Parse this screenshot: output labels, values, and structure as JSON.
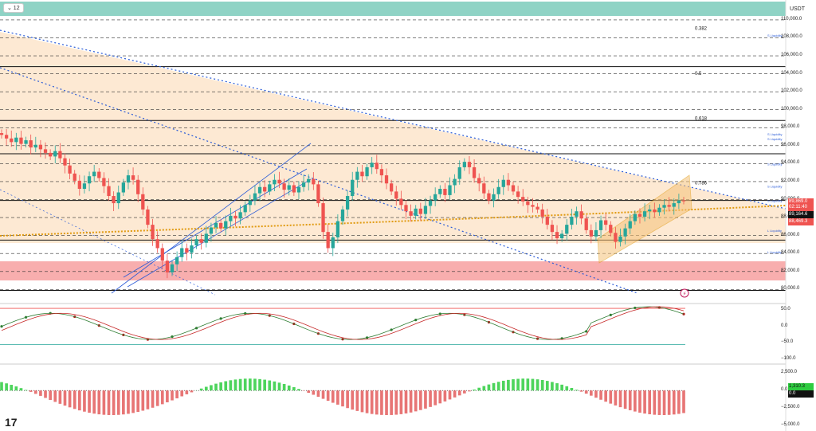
{
  "toolbar": {
    "collapse_label": "⌄ 12"
  },
  "price_axis": {
    "currency": "USDT",
    "ticks": [
      "110,000.0",
      "108,000.0",
      "106,000.0",
      "104,000.0",
      "102,000.0",
      "100,000.0",
      "98,000.0",
      "96,000.0",
      "94,000.0",
      "92,000.0",
      "90,000.0",
      "88,000.0",
      "86,000.0",
      "84,000.0",
      "82,000.0",
      "80,000.0"
    ],
    "tick_values": [
      110000,
      108000,
      106000,
      104000,
      102000,
      100000,
      98000,
      96000,
      94000,
      92000,
      90000,
      88000,
      86000,
      84000,
      82000,
      80000
    ],
    "current_price": "89,869.0",
    "countdown": "02:11:40",
    "level_1": "89,164.6",
    "level_2": "88,469.3"
  },
  "fib_levels": [
    {
      "label": "0.382",
      "value": 108700
    },
    {
      "label": "0.5",
      "value": 103700
    },
    {
      "label": "0.618",
      "value": 98700
    },
    {
      "label": "0.786",
      "value": 91500
    }
  ],
  "liquidity_labels": [
    {
      "label": "S Liquidity",
      "value": 108300
    },
    {
      "label": "S Liquidity",
      "value": 97300
    },
    {
      "label": "S Liquidity",
      "value": 96800
    },
    {
      "label": "S Liquidity",
      "value": 94000
    },
    {
      "label": "S Liquidity",
      "value": 91500
    },
    {
      "label": "S Liquidity",
      "value": 89900
    },
    {
      "label": "L Liquidity",
      "value": 86600
    },
    {
      "label": "L Liquidity",
      "value": 84200
    }
  ],
  "oscillator_axis": {
    "ticks": [
      "50.0",
      "0.0",
      "−50.0",
      "−100.0"
    ],
    "tick_values": [
      50,
      0,
      -50,
      -100
    ]
  },
  "macd_axis": {
    "ticks": [
      "2,500.0",
      "0.0",
      "−2,500.0",
      "−5,000.0"
    ],
    "tick_values": [
      2500,
      0,
      -2500,
      -5000
    ],
    "value_label": "1,310.3",
    "zero_label": "0.0"
  },
  "colors": {
    "up": "#26a69a",
    "down": "#ef5350",
    "fib_band": "#fde3c8",
    "red_zone": "#f7a0a0",
    "teal_bar": "#8fd3c5",
    "blue_line": "#2a5bd7",
    "orange_dots": "#e09a10"
  },
  "chart_data": {
    "type": "candlestick",
    "price_range": [
      79500,
      111500
    ],
    "closes": [
      97200,
      96800,
      96400,
      96900,
      96200,
      96600,
      95800,
      96100,
      95600,
      95200,
      94800,
      95400,
      94600,
      93800,
      92900,
      92100,
      91200,
      91800,
      92600,
      93100,
      92400,
      91500,
      90400,
      89600,
      90800,
      91900,
      92700,
      92200,
      90600,
      88900,
      87200,
      85600,
      84600,
      83200,
      81900,
      82800,
      83600,
      84600,
      84100,
      84900,
      85600,
      85200,
      86200,
      86900,
      87400,
      86800,
      87600,
      88200,
      87900,
      88600,
      89400,
      89900,
      90700,
      91400,
      90900,
      91700,
      92200,
      91800,
      91100,
      91600,
      90800,
      91400,
      91900,
      92300,
      91700,
      89600,
      86400,
      84600,
      85800,
      87600,
      88900,
      90400,
      92200,
      93100,
      92600,
      93600,
      94100,
      93400,
      92700,
      91800,
      90900,
      90100,
      89400,
      88700,
      88200,
      89000,
      88400,
      89300,
      89900,
      90600,
      91200,
      90500,
      91600,
      92300,
      93600,
      94200,
      93600,
      92400,
      91800,
      90700,
      89900,
      90600,
      91400,
      92200,
      91600,
      90900,
      90300,
      89800,
      89400,
      89200,
      88900,
      88100,
      87200,
      86400,
      85700,
      86200,
      87200,
      88100,
      88700,
      87900,
      86600,
      85900,
      86600,
      87700,
      87200,
      86300,
      85300,
      85900,
      86800,
      87600,
      88400,
      88100,
      88700,
      88900,
      88600,
      89100,
      89400,
      89200,
      89600,
      89900,
      89869
    ],
    "oscillator_range": [
      -110,
      60
    ],
    "macd_range": [
      -5200,
      3200
    ]
  }
}
